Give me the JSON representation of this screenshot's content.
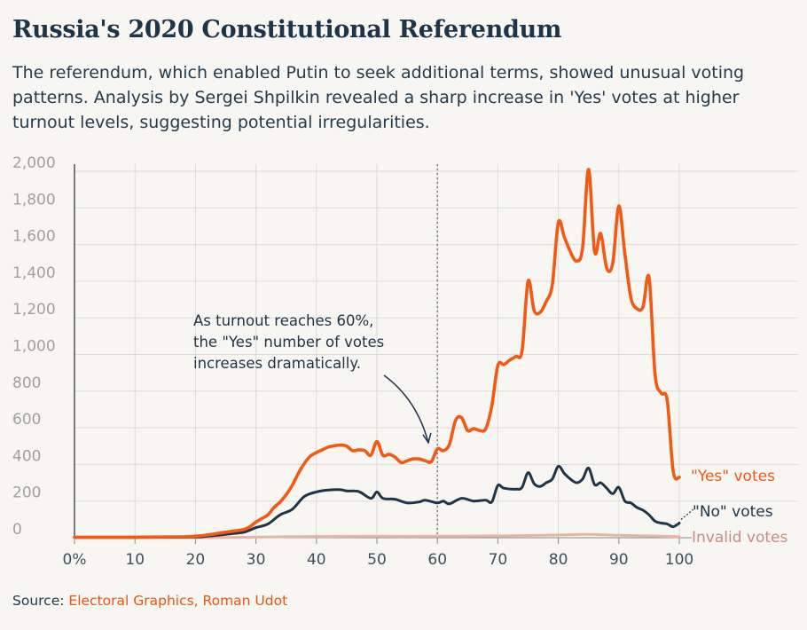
{
  "header": {
    "title": "Russia's 2020 Constitutional Referendum",
    "subtitle": "The referendum, which enabled Putin to seek additional terms, showed unusual voting patterns. Analysis by Sergei Shpilkin revealed a sharp increase in 'Yes' votes at higher turnout levels, suggesting potential irregularities."
  },
  "source": {
    "label": "Source:",
    "text": "Electoral Graphics, Roman Udot"
  },
  "colors": {
    "yes": "#f05a14",
    "no": "#1f3446",
    "invalid": "#e8b4a5",
    "grid": "#dddbd7",
    "annotation_line": "#6b6b6b"
  },
  "chart_data": {
    "type": "line",
    "xlabel": "",
    "ylabel": "",
    "xlim": [
      0,
      100
    ],
    "ylim": [
      0,
      2000
    ],
    "x_ticks": [
      0,
      10,
      20,
      30,
      40,
      50,
      60,
      70,
      80,
      90,
      100
    ],
    "x_tick_labels": [
      "0%",
      "10",
      "20",
      "30",
      "40",
      "50",
      "60",
      "70",
      "80",
      "90",
      "100"
    ],
    "y_ticks": [
      0,
      200,
      400,
      600,
      800,
      1000,
      1200,
      1400,
      1600,
      1800,
      2000
    ],
    "y_tick_labels": [
      "0",
      "200",
      "400",
      "600",
      "800",
      "1,000",
      "1,200",
      "1,400",
      "1,600",
      "1,800",
      "2,000"
    ],
    "grid": true,
    "reference_line": {
      "x": 60,
      "style": "dotted"
    },
    "annotation": {
      "lines": [
        "As turnout reaches 60%,",
        "the \"Yes\" number of votes",
        "increases dramatically."
      ],
      "points_to": {
        "x": 58.5,
        "y": 480
      }
    },
    "series": [
      {
        "name": "\"Yes\" votes",
        "color": "#f05a14",
        "points": [
          [
            0,
            3
          ],
          [
            10,
            3
          ],
          [
            18,
            5
          ],
          [
            20,
            8
          ],
          [
            22,
            15
          ],
          [
            24,
            25
          ],
          [
            26,
            35
          ],
          [
            28,
            45
          ],
          [
            29,
            60
          ],
          [
            30,
            85
          ],
          [
            31,
            105
          ],
          [
            32,
            125
          ],
          [
            33,
            165
          ],
          [
            34,
            195
          ],
          [
            35,
            235
          ],
          [
            36,
            285
          ],
          [
            37,
            350
          ],
          [
            38,
            405
          ],
          [
            39,
            445
          ],
          [
            40,
            465
          ],
          [
            41,
            480
          ],
          [
            42,
            495
          ],
          [
            43,
            502
          ],
          [
            44,
            505
          ],
          [
            45,
            500
          ],
          [
            46,
            475
          ],
          [
            47,
            480
          ],
          [
            48,
            475
          ],
          [
            49,
            450
          ],
          [
            50,
            525
          ],
          [
            51,
            450
          ],
          [
            52,
            455
          ],
          [
            53,
            440
          ],
          [
            54,
            410
          ],
          [
            55,
            420
          ],
          [
            56,
            430
          ],
          [
            57,
            430
          ],
          [
            58,
            420
          ],
          [
            59,
            415
          ],
          [
            60,
            485
          ],
          [
            61,
            475
          ],
          [
            62,
            510
          ],
          [
            63,
            640
          ],
          [
            64,
            655
          ],
          [
            65,
            585
          ],
          [
            66,
            595
          ],
          [
            67,
            585
          ],
          [
            68,
            595
          ],
          [
            69,
            720
          ],
          [
            70,
            940
          ],
          [
            71,
            945
          ],
          [
            72,
            970
          ],
          [
            73,
            990
          ],
          [
            74,
            1020
          ],
          [
            75,
            1400
          ],
          [
            76,
            1240
          ],
          [
            77,
            1230
          ],
          [
            78,
            1290
          ],
          [
            79,
            1380
          ],
          [
            80,
            1720
          ],
          [
            81,
            1640
          ],
          [
            82,
            1560
          ],
          [
            83,
            1510
          ],
          [
            84,
            1580
          ],
          [
            85,
            2010
          ],
          [
            86,
            1560
          ],
          [
            87,
            1660
          ],
          [
            88,
            1470
          ],
          [
            89,
            1500
          ],
          [
            90,
            1810
          ],
          [
            91,
            1550
          ],
          [
            92,
            1310
          ],
          [
            93,
            1250
          ],
          [
            94,
            1260
          ],
          [
            95,
            1420
          ],
          [
            96,
            890
          ],
          [
            97,
            790
          ],
          [
            98,
            750
          ],
          [
            99,
            360
          ],
          [
            100,
            330
          ]
        ]
      },
      {
        "name": "\"No\" votes",
        "color": "#1f3446",
        "points": [
          [
            0,
            2
          ],
          [
            18,
            3
          ],
          [
            22,
            8
          ],
          [
            26,
            22
          ],
          [
            28,
            30
          ],
          [
            30,
            55
          ],
          [
            32,
            75
          ],
          [
            34,
            125
          ],
          [
            36,
            155
          ],
          [
            38,
            225
          ],
          [
            40,
            250
          ],
          [
            42,
            260
          ],
          [
            44,
            262
          ],
          [
            45,
            255
          ],
          [
            47,
            252
          ],
          [
            49,
            215
          ],
          [
            50,
            250
          ],
          [
            51,
            215
          ],
          [
            53,
            210
          ],
          [
            55,
            190
          ],
          [
            57,
            195
          ],
          [
            58,
            205
          ],
          [
            60,
            190
          ],
          [
            61,
            200
          ],
          [
            62,
            185
          ],
          [
            64,
            215
          ],
          [
            66,
            200
          ],
          [
            68,
            205
          ],
          [
            69,
            195
          ],
          [
            70,
            285
          ],
          [
            71,
            270
          ],
          [
            73,
            265
          ],
          [
            74,
            275
          ],
          [
            75,
            355
          ],
          [
            76,
            295
          ],
          [
            77,
            280
          ],
          [
            78,
            300
          ],
          [
            79,
            320
          ],
          [
            80,
            390
          ],
          [
            81,
            350
          ],
          [
            82,
            320
          ],
          [
            83,
            300
          ],
          [
            84,
            320
          ],
          [
            85,
            380
          ],
          [
            86,
            290
          ],
          [
            87,
            300
          ],
          [
            88,
            270
          ],
          [
            89,
            240
          ],
          [
            90,
            275
          ],
          [
            91,
            200
          ],
          [
            92,
            190
          ],
          [
            93,
            165
          ],
          [
            94,
            150
          ],
          [
            95,
            125
          ],
          [
            96,
            90
          ],
          [
            97,
            80
          ],
          [
            98,
            75
          ],
          [
            99,
            60
          ],
          [
            100,
            80
          ]
        ]
      },
      {
        "name": "Invalid votes",
        "color": "#e8b4a5",
        "points": [
          [
            0,
            0
          ],
          [
            20,
            0
          ],
          [
            30,
            3
          ],
          [
            40,
            7
          ],
          [
            50,
            8
          ],
          [
            60,
            8
          ],
          [
            70,
            10
          ],
          [
            75,
            12
          ],
          [
            80,
            15
          ],
          [
            85,
            18
          ],
          [
            90,
            13
          ],
          [
            95,
            10
          ],
          [
            100,
            6
          ]
        ]
      }
    ]
  }
}
